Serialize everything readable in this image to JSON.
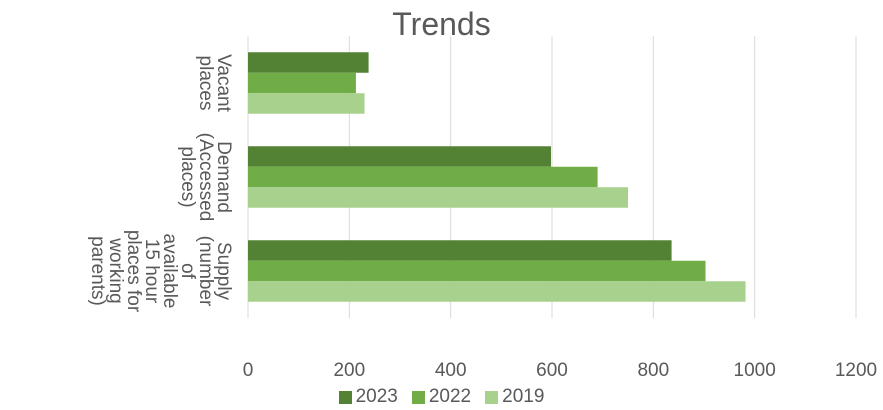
{
  "chart_data": {
    "type": "bar",
    "orientation": "horizontal",
    "title": "Trends",
    "xlabel": "",
    "ylabel": "",
    "xlim": [
      0,
      1200
    ],
    "x_ticks": [
      "0",
      "200",
      "400",
      "600",
      "800",
      "1000",
      "1200"
    ],
    "grid": true,
    "legend_position": "bottom",
    "categories": [
      "Vacant places",
      "Demand (Accessed places)",
      "Supply (number of available 15 hour places for working parents)"
    ],
    "category_lines": [
      [
        "Vacant",
        "places"
      ],
      [
        "Demand",
        "(Accessed",
        "places)"
      ],
      [
        "Supply",
        "(number",
        "of",
        "available",
        "15 hour",
        "places for",
        "working",
        "parents)"
      ]
    ],
    "series": [
      {
        "name": "2023",
        "color": "#548235",
        "values": [
          238,
          598,
          836
        ]
      },
      {
        "name": "2022",
        "color": "#70ad47",
        "values": [
          213,
          690,
          903
        ]
      },
      {
        "name": "2019",
        "color": "#a9d18e",
        "values": [
          230,
          750,
          982
        ]
      }
    ]
  }
}
